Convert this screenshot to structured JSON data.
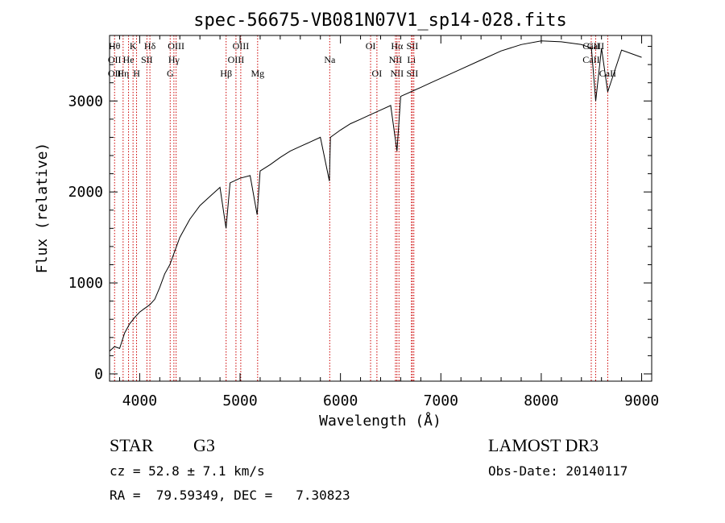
{
  "chart_data": {
    "type": "line",
    "title": "spec-56675-VB081N07V1_sp14-028.fits",
    "xlabel": "Wavelength (Å)",
    "ylabel": "Flux (relative)",
    "xlim": [
      3700,
      9100
    ],
    "ylim": [
      -80,
      3720
    ],
    "x_ticks": [
      4000,
      5000,
      6000,
      7000,
      8000,
      9000
    ],
    "y_ticks": [
      0,
      1000,
      2000,
      3000
    ],
    "grid": false,
    "colors": {
      "spectrum": "#000000",
      "lines": "#cc0000",
      "axes": "#000000"
    },
    "series": [
      {
        "name": "flux",
        "x": [
          3700,
          3750,
          3800,
          3850,
          3900,
          3950,
          4000,
          4050,
          4100,
          4150,
          4200,
          4250,
          4300,
          4350,
          4400,
          4500,
          4600,
          4700,
          4800,
          4860,
          4900,
          5000,
          5100,
          5170,
          5200,
          5300,
          5400,
          5500,
          5600,
          5700,
          5800,
          5890,
          5900,
          6000,
          6100,
          6200,
          6300,
          6400,
          6500,
          6563,
          6600,
          6700,
          6800,
          6900,
          7000,
          7200,
          7400,
          7600,
          7800,
          8000,
          8200,
          8400,
          8500,
          8542,
          8600,
          8662,
          8800,
          9000
        ],
        "y": [
          250,
          300,
          280,
          450,
          550,
          620,
          680,
          720,
          760,
          820,
          950,
          1100,
          1200,
          1350,
          1500,
          1700,
          1850,
          1950,
          2050,
          1600,
          2100,
          2150,
          2180,
          1750,
          2230,
          2300,
          2380,
          2450,
          2500,
          2550,
          2600,
          2120,
          2600,
          2680,
          2750,
          2800,
          2850,
          2900,
          2950,
          2450,
          3050,
          3100,
          3150,
          3200,
          3250,
          3350,
          3450,
          3550,
          3620,
          3660,
          3650,
          3620,
          3580,
          3000,
          3580,
          3100,
          3560,
          3480
        ]
      }
    ],
    "line_markers": [
      {
        "x": 3750,
        "labels": [
          "Hθ",
          "OII",
          "OII"
        ]
      },
      {
        "x": 3835,
        "labels": [
          "",
          "",
          "Hη"
        ]
      },
      {
        "x": 3889,
        "labels": [
          "",
          "He",
          ""
        ]
      },
      {
        "x": 3934,
        "labels": [
          "K",
          "",
          ""
        ]
      },
      {
        "x": 3969,
        "labels": [
          "",
          "",
          "H"
        ]
      },
      {
        "x": 4072,
        "labels": [
          "",
          "SII",
          ""
        ]
      },
      {
        "x": 4102,
        "labels": [
          "Hδ",
          "",
          ""
        ]
      },
      {
        "x": 4304,
        "labels": [
          "",
          "",
          "G"
        ]
      },
      {
        "x": 4341,
        "labels": [
          "",
          "Hγ",
          ""
        ]
      },
      {
        "x": 4363,
        "labels": [
          "OIII",
          "",
          ""
        ]
      },
      {
        "x": 4861,
        "labels": [
          "",
          "",
          "Hβ"
        ]
      },
      {
        "x": 4959,
        "labels": [
          "",
          "OIII",
          ""
        ]
      },
      {
        "x": 5007,
        "labels": [
          "OIII",
          "",
          ""
        ]
      },
      {
        "x": 5175,
        "labels": [
          "",
          "",
          "Mg"
        ]
      },
      {
        "x": 5893,
        "labels": [
          "",
          "Na",
          ""
        ]
      },
      {
        "x": 6300,
        "labels": [
          "OI",
          "",
          ""
        ]
      },
      {
        "x": 6363,
        "labels": [
          "",
          "",
          "OI"
        ]
      },
      {
        "x": 6548,
        "labels": [
          "",
          "NII",
          ""
        ]
      },
      {
        "x": 6563,
        "labels": [
          "Hα",
          "",
          "NII"
        ]
      },
      {
        "x": 6583,
        "labels": [
          "",
          "",
          ""
        ]
      },
      {
        "x": 6707,
        "labels": [
          "",
          "Li",
          ""
        ]
      },
      {
        "x": 6716,
        "labels": [
          "SII",
          "",
          "SII"
        ]
      },
      {
        "x": 6731,
        "labels": [
          "",
          "",
          ""
        ]
      },
      {
        "x": 8498,
        "labels": [
          "CaII",
          "CaII",
          ""
        ]
      },
      {
        "x": 8542,
        "labels": [
          "CaII",
          "",
          ""
        ]
      },
      {
        "x": 8662,
        "labels": [
          "",
          "",
          "CaII"
        ]
      }
    ]
  },
  "info": {
    "object_class": "STAR",
    "subclass": "G3",
    "survey": "LAMOST DR3",
    "redshift": "cz = 52.8 ± 7.1 km/s",
    "obs_date": "Obs-Date: 20140117",
    "coords": "RA =  79.59349, DEC =   7.30823"
  }
}
